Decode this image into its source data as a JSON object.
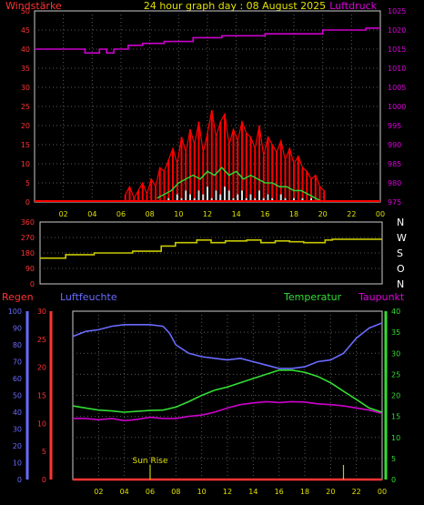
{
  "header": {
    "title": "24 hour graph day : 08 August 2025",
    "left_label": "Windstärke",
    "right_label": "Luftdruck"
  },
  "colors": {
    "background": "#000000",
    "panel_frame": "#ffffff",
    "grid": "#5a5a5a",
    "wind_axis": "#ff3333",
    "pressure_axis": "#dd00dd",
    "pressure_line": "#cc00cc",
    "wind_gust": "#ff0000",
    "wind_avg": "#33cc33",
    "wind_white": "#dddddd",
    "direction_line": "#c8c800",
    "rain_axis": "#ff3333",
    "humidity_axis": "#6a6aff",
    "temperature_axis": "#33dd33",
    "dewpoint_line": "#cc00cc",
    "sunrise_marker": "#c8c800",
    "text_yellow": "#e0e000",
    "text_white": "#ffffff"
  },
  "chart_data": [
    {
      "type": "line",
      "x_ticks": [
        "02",
        "04",
        "06",
        "08",
        "10",
        "12",
        "14",
        "16",
        "18",
        "20",
        "22",
        "00"
      ],
      "wind_axis": {
        "ticks": [
          0,
          5,
          10,
          15,
          20,
          25,
          30,
          35,
          40,
          45,
          50
        ],
        "ylim": [
          0,
          50
        ]
      },
      "pressure_axis": {
        "ticks": [
          975,
          980,
          985,
          990,
          995,
          1000,
          1005,
          1010,
          1015,
          1020,
          1025
        ],
        "ylim": [
          975,
          1025
        ]
      },
      "series": [
        {
          "role": "pressure",
          "x": [
            0,
            3.5,
            3.5,
            4.5,
            4.5,
            5.0,
            5.0,
            5.5,
            5.5,
            6.5,
            6.5,
            7.5,
            7.5,
            9.0,
            9.0,
            11.0,
            11.0,
            13.0,
            13.0,
            16.0,
            16.0,
            20.0,
            20.0,
            23.0,
            23.0,
            24.0
          ],
          "values": [
            1015.0,
            1015.0,
            1014.0,
            1014.0,
            1015.0,
            1015.0,
            1014.0,
            1014.0,
            1015.0,
            1015.0,
            1016.0,
            1016.0,
            1016.5,
            1016.5,
            1017.0,
            1017.0,
            1018.0,
            1018.0,
            1018.5,
            1018.5,
            1019.0,
            1019.0,
            1020.0,
            1020.0,
            1020.5,
            1020.5
          ]
        },
        {
          "role": "wind_gust",
          "x": [
            6.3,
            6.6,
            6.9,
            7.2,
            7.5,
            7.8,
            8.1,
            8.4,
            8.7,
            9.0,
            9.3,
            9.6,
            9.9,
            10.2,
            10.5,
            10.8,
            11.1,
            11.4,
            11.7,
            12.0,
            12.3,
            12.6,
            12.9,
            13.2,
            13.5,
            13.8,
            14.1,
            14.4,
            14.7,
            15.0,
            15.3,
            15.6,
            15.9,
            16.2,
            16.5,
            16.8,
            17.1,
            17.4,
            17.7,
            18.0,
            18.3,
            18.6,
            18.9,
            19.2,
            19.5,
            19.8,
            20.1
          ],
          "values": [
            2,
            4,
            1,
            3,
            5,
            2,
            6,
            4,
            9,
            8,
            11,
            14,
            10,
            17,
            13,
            19,
            15,
            21,
            13,
            18,
            24,
            17,
            21,
            23,
            15,
            19,
            16,
            21,
            18,
            17,
            14,
            20,
            12,
            17,
            15,
            13,
            16,
            11,
            14,
            10,
            12,
            9,
            8,
            6,
            7,
            4,
            3
          ]
        },
        {
          "role": "wind_avg",
          "x": [
            8.5,
            9.0,
            9.5,
            10.0,
            10.5,
            11.0,
            11.5,
            12.0,
            12.5,
            13.0,
            13.5,
            14.0,
            14.5,
            15.0,
            15.5,
            16.0,
            16.5,
            17.0,
            17.5,
            18.0,
            18.5,
            19.0,
            19.5,
            20.0
          ],
          "values": [
            1,
            2,
            3,
            5,
            6,
            7,
            6,
            8,
            7,
            9,
            7,
            8,
            6,
            7,
            6,
            5,
            5,
            4,
            4,
            3,
            3,
            2,
            1,
            0
          ]
        },
        {
          "role": "wind_low",
          "x": [
            9.0,
            9.3,
            9.6,
            9.9,
            10.2,
            10.5,
            10.8,
            11.1,
            11.4,
            11.7,
            12.0,
            12.3,
            12.6,
            12.9,
            13.2,
            13.5,
            13.8,
            14.1,
            14.4,
            14.7,
            15.0,
            15.3,
            15.6,
            15.9,
            16.2,
            16.5,
            16.8,
            17.1,
            17.4,
            17.7,
            18.0,
            18.3,
            18.6,
            18.9,
            19.2,
            19.5
          ],
          "values": [
            0,
            1,
            0,
            2,
            1,
            3,
            2,
            1,
            3,
            2,
            4,
            1,
            3,
            2,
            4,
            3,
            1,
            2,
            3,
            1,
            2,
            1,
            3,
            1,
            2,
            1,
            0,
            2,
            1,
            0,
            1,
            0,
            1,
            0,
            1,
            0
          ]
        }
      ]
    },
    {
      "type": "line",
      "y_ticks": [
        0,
        90,
        180,
        270,
        360
      ],
      "ylim": [
        0,
        360
      ],
      "direction_labels": [
        "N",
        "W",
        "S",
        "O",
        "N"
      ],
      "series": [
        {
          "role": "wind_direction",
          "x": [
            0,
            1.8,
            1.8,
            3.8,
            3.8,
            6.5,
            6.5,
            8.5,
            8.5,
            9.5,
            9.5,
            11.0,
            11.0,
            12.0,
            12.0,
            13.0,
            13.0,
            14.5,
            14.5,
            15.5,
            15.5,
            16.5,
            16.5,
            17.5,
            17.5,
            18.5,
            18.5,
            20.0,
            20.0,
            20.5,
            20.5,
            24.0
          ],
          "values": [
            150,
            150,
            170,
            170,
            180,
            180,
            190,
            190,
            220,
            220,
            240,
            240,
            255,
            255,
            240,
            240,
            250,
            250,
            255,
            255,
            240,
            240,
            250,
            250,
            245,
            245,
            240,
            240,
            255,
            255,
            260,
            260
          ]
        }
      ]
    },
    {
      "type": "line",
      "labels": {
        "rain": "Regen",
        "humidity": "Luftfeuchte",
        "temperature": "Temperatur",
        "dewpoint": "Taupunkt"
      },
      "x_ticks": [
        "02",
        "04",
        "06",
        "08",
        "10",
        "12",
        "14",
        "16",
        "18",
        "20",
        "22",
        "00"
      ],
      "humidity_axis": {
        "ticks": [
          0,
          10,
          20,
          30,
          40,
          50,
          60,
          70,
          80,
          90,
          100
        ],
        "ylim": [
          0,
          100
        ]
      },
      "rain_axis": {
        "ticks": [
          0,
          5,
          10,
          15,
          20,
          25,
          30
        ],
        "ylim": [
          0,
          30
        ]
      },
      "temperature_axis": {
        "ticks": [
          0,
          5,
          10,
          15,
          20,
          25,
          30,
          35,
          40
        ],
        "ylim": [
          0,
          40
        ]
      },
      "annotation": {
        "text": "Sun Rise",
        "x": 6.0
      },
      "series": [
        {
          "role": "humidity",
          "x": [
            0,
            1,
            2,
            3,
            4,
            5,
            6,
            7,
            7.5,
            8,
            9,
            10,
            11,
            12,
            13,
            14,
            15,
            16,
            17,
            18,
            19,
            20,
            21,
            22,
            23,
            24
          ],
          "values": [
            85,
            88,
            89,
            91,
            92,
            92,
            92,
            91,
            87,
            80,
            75,
            73,
            72,
            71,
            72,
            70,
            68,
            66,
            66,
            67,
            70,
            71,
            75,
            84,
            90,
            93
          ]
        },
        {
          "role": "temperature",
          "x": [
            0,
            1,
            2,
            3,
            4,
            5,
            6,
            7,
            8,
            9,
            10,
            11,
            12,
            13,
            14,
            15,
            16,
            17,
            18,
            19,
            20,
            21,
            22,
            23,
            24
          ],
          "values": [
            17.5,
            17,
            16.5,
            16.3,
            16,
            16.2,
            16.4,
            16.5,
            17.2,
            18.5,
            20,
            21.2,
            22,
            23,
            24,
            25,
            26,
            26,
            25.5,
            24.5,
            23,
            21,
            19,
            17,
            16
          ]
        },
        {
          "role": "dewpoint",
          "x": [
            0,
            1,
            2,
            3,
            4,
            5,
            6,
            7,
            8,
            9,
            10,
            11,
            12,
            13,
            14,
            15,
            16,
            17,
            18,
            19,
            20,
            21,
            22,
            23,
            24
          ],
          "values": [
            14.5,
            14.5,
            14.2,
            14.5,
            14,
            14.3,
            14.8,
            14.5,
            14.5,
            15,
            15.3,
            16,
            17,
            17.8,
            18.2,
            18.5,
            18.3,
            18.5,
            18.4,
            18,
            17.8,
            17.5,
            17,
            16.5,
            15.7
          ]
        },
        {
          "role": "rain",
          "x": [
            0,
            24
          ],
          "values": [
            0,
            0
          ]
        }
      ],
      "markers": [
        {
          "role": "sunrise",
          "x": 6.0
        },
        {
          "role": "event",
          "x": 21.0
        }
      ]
    }
  ]
}
